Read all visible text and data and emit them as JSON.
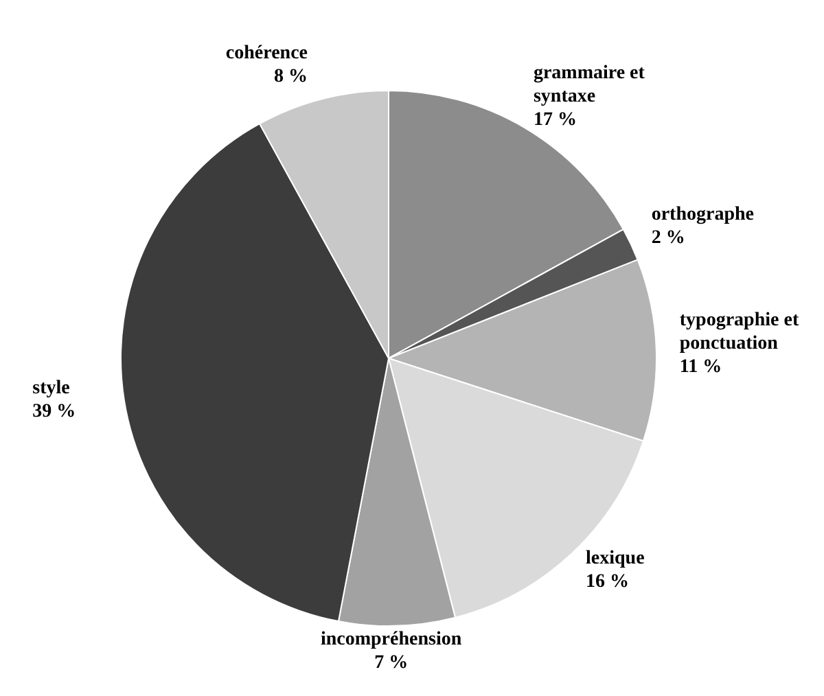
{
  "chart_data": {
    "type": "pie",
    "categories": [
      "grammaire et syntaxe",
      "orthographe",
      "typographie et ponctuation",
      "lexique",
      "incompréhension",
      "style",
      "cohérence"
    ],
    "values": [
      17,
      2,
      11,
      16,
      7,
      39,
      8
    ],
    "value_labels": [
      "17 %",
      "2 %",
      "11 %",
      "16 %",
      "7 %",
      "39 %",
      "8 %"
    ],
    "colors": [
      "#8c8c8c",
      "#555555",
      "#b4b4b4",
      "#dadada",
      "#a2a2a2",
      "#3c3c3c",
      "#c8c8c8"
    ],
    "legend": false
  }
}
